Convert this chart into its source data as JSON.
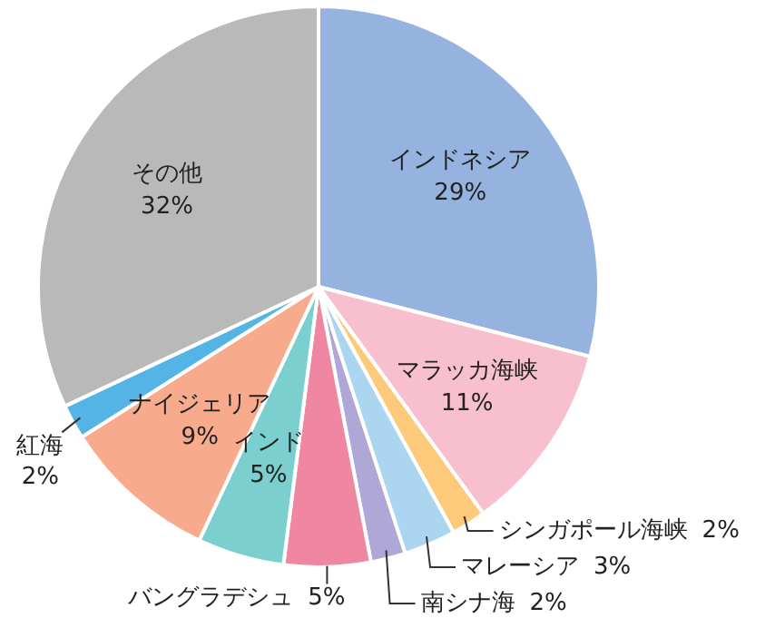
{
  "chart_data": {
    "type": "pie",
    "categories": [
      "インドネシア",
      "マラッカ海峡",
      "シンガポール海峡",
      "マレーシア",
      "南シナ海",
      "バングラデシュ",
      "インド",
      "ナイジェリア",
      "紅海",
      "その他"
    ],
    "values": [
      29,
      11,
      2,
      3,
      2,
      5,
      5,
      9,
      2,
      32
    ],
    "value_labels": [
      "29%",
      "11%",
      "2%",
      "3%",
      "2%",
      "5%",
      "5%",
      "9%",
      "2%",
      "32%"
    ],
    "colors": [
      "#95b3de",
      "#f8c0cf",
      "#fdc97a",
      "#acd6f0",
      "#afa8d6",
      "#f087a2",
      "#7bcfcf",
      "#f8aa8c",
      "#55b4e6",
      "#b9b9b9"
    ],
    "legend": false
  }
}
